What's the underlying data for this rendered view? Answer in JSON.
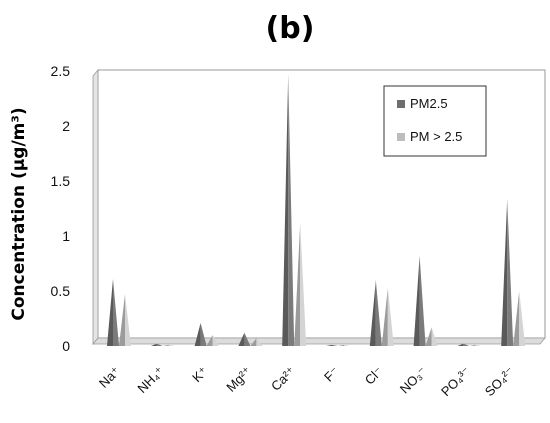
{
  "chart_data": {
    "type": "bar",
    "panel_label": "(b)",
    "ylabel": "Concentration (μg/m³)",
    "ylim": [
      0,
      2.5
    ],
    "yticks": [
      "0",
      "0.5",
      "1",
      "1.5",
      "2",
      "2.5"
    ],
    "categories": [
      "Na⁺",
      "NH₄⁺",
      "K⁺",
      "Mg²⁺",
      "Ca²⁺",
      "F⁻",
      "Cl⁻",
      "NO₃⁻",
      "PO₄³⁻",
      "SO₄²⁻"
    ],
    "series": [
      {
        "name": "PM2.5",
        "color": "#6e6e6e",
        "values": [
          0.61,
          0.02,
          0.21,
          0.12,
          2.47,
          0.01,
          0.6,
          0.82,
          0.02,
          1.34
        ]
      },
      {
        "name": "PM > 2.5",
        "color": "#bdbdbd",
        "values": [
          0.47,
          0.01,
          0.1,
          0.07,
          1.12,
          0.01,
          0.53,
          0.17,
          0.01,
          0.5
        ]
      }
    ],
    "legend_position": "top-right",
    "grid": false
  }
}
